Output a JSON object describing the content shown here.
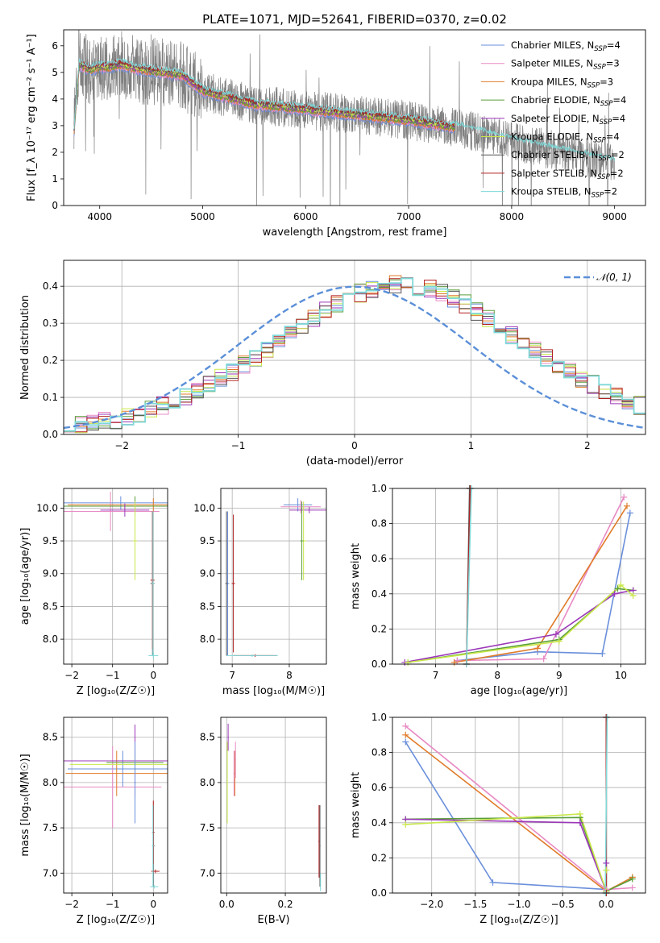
{
  "figure_title": "PLATE=1071, MJD=52641, FIBERID=0370, z=0.02",
  "models": [
    {
      "name": "Chabrier MILES",
      "nssp": "4",
      "color": "#6a8fdb"
    },
    {
      "name": "Salpeter MILES",
      "nssp": "3",
      "color": "#e88ac4"
    },
    {
      "name": "Kroupa MILES",
      "nssp": "3",
      "color": "#e07b2a"
    },
    {
      "name": "Chabrier ELODIE",
      "nssp": "4",
      "color": "#5a9e3a"
    },
    {
      "name": "Salpeter ELODIE",
      "nssp": "4",
      "color": "#9b37b8"
    },
    {
      "name": "Kroupa ELODIE",
      "nssp": "4",
      "color": "#c9e84a"
    },
    {
      "name": "Chabrier STELIB",
      "nssp": "2",
      "color": "#555555"
    },
    {
      "name": "Salpeter STELIB",
      "nssp": "2",
      "color": "#b22222"
    },
    {
      "name": "Kroupa STELIB",
      "nssp": "2",
      "color": "#7fd8d8"
    }
  ],
  "chart_data": [
    {
      "id": "spectrum",
      "type": "line",
      "xlabel": "wavelength [Angstrom, rest frame]",
      "ylabel": "Flux [f_λ 10⁻¹⁷ erg cm⁻² s⁻¹ A⁻¹]",
      "xlim": [
        3650,
        9300
      ],
      "ylim": [
        0,
        6.6
      ],
      "xticks": [
        4000,
        5000,
        6000,
        7000,
        8000,
        9000
      ],
      "yticks": [
        0,
        1,
        2,
        3,
        4,
        5,
        6
      ],
      "data_color": "#808080",
      "data_range": [
        3750,
        9000
      ],
      "model_range": [
        3750,
        7450
      ],
      "continuum": {
        "x": [
          3750,
          3800,
          3900,
          4000,
          4100,
          4200,
          4400,
          4600,
          4800,
          5000,
          5200,
          5500,
          6000,
          6500,
          7000,
          7500,
          8000,
          8500,
          9000
        ],
        "y": [
          2.8,
          5.3,
          5.1,
          5.2,
          5.2,
          5.3,
          5.1,
          5.0,
          4.9,
          4.3,
          4.1,
          3.8,
          3.6,
          3.4,
          3.2,
          2.9,
          2.4,
          2.0,
          1.6
        ]
      },
      "grid": false,
      "legend": "top-right"
    },
    {
      "id": "residuals",
      "type": "step",
      "xlabel": "(data-model)/error",
      "ylabel": "Normed distribution",
      "xlim": [
        -2.5,
        2.5
      ],
      "ylim": [
        0,
        0.47
      ],
      "xticks": [
        -2,
        -1,
        0,
        1,
        2
      ],
      "yticks": [
        0.0,
        0.1,
        0.2,
        0.3,
        0.4
      ],
      "reference_label": "𝒩(0, 1)",
      "bin_edges_start": -2.5,
      "bin_width": 0.1,
      "base_hist": [
        0.018,
        0.025,
        0.03,
        0.035,
        0.04,
        0.047,
        0.055,
        0.066,
        0.078,
        0.09,
        0.104,
        0.12,
        0.135,
        0.152,
        0.17,
        0.188,
        0.208,
        0.228,
        0.25,
        0.27,
        0.292,
        0.312,
        0.332,
        0.352,
        0.368,
        0.382,
        0.392,
        0.4,
        0.405,
        0.405,
        0.4,
        0.392,
        0.382,
        0.368,
        0.352,
        0.332,
        0.312,
        0.292,
        0.27,
        0.25,
        0.228,
        0.208,
        0.188,
        0.17,
        0.152,
        0.135,
        0.12,
        0.104,
        0.09,
        0.078
      ],
      "grid": true,
      "legend": "top-right"
    },
    {
      "id": "age_vs_Z",
      "type": "errorbar",
      "xlabel": "Z [log₁₀(Z/Z☉)]",
      "ylabel": "age  [log₁₀(age/yr)]",
      "xlim": [
        -2.2,
        0.35
      ],
      "ylim": [
        7.62,
        10.3
      ],
      "xticks": [
        -2,
        -1,
        0
      ],
      "yticks": [
        8.0,
        8.5,
        9.0,
        9.5,
        10.0
      ],
      "points": [
        {
          "m": 0,
          "x": -0.8,
          "y": 10.08,
          "xerr": 1.5,
          "yerr": 0.1
        },
        {
          "m": 1,
          "x": -1.05,
          "y": 9.95,
          "xerr": 1.2,
          "yerr": 0.3
        },
        {
          "m": 2,
          "x": 0.0,
          "y": 10.05,
          "xerr": 2.1,
          "yerr": 0.1
        },
        {
          "m": 3,
          "x": -0.45,
          "y": 10.03,
          "xerr": 1.9,
          "yerr": 0.15
        },
        {
          "m": 4,
          "x": -0.7,
          "y": 9.97,
          "xerr": 0.6,
          "yerr": 0.1
        },
        {
          "m": 5,
          "x": -0.45,
          "y": 9.5,
          "xerr": 0.05,
          "yerr": 0.6
        },
        {
          "m": 6,
          "x": -0.02,
          "y": 8.85,
          "xerr": 0.05,
          "yerr": 1.1
        },
        {
          "m": 7,
          "x": -0.02,
          "y": 8.9,
          "xerr": 0.05,
          "yerr": 1.05
        },
        {
          "m": 8,
          "x": 0.0,
          "y": 7.75,
          "xerr": 0.12,
          "yerr": 0.05
        },
        {
          "m": 8,
          "x": -0.01,
          "y": 8.85,
          "xerr": 0.03,
          "yerr": 1.1
        }
      ]
    },
    {
      "id": "age_vs_mass",
      "type": "errorbar",
      "xlabel": "mass [log₁₀(M/M☉)]",
      "ylabel": "",
      "xlim": [
        6.8,
        8.65
      ],
      "ylim": [
        7.62,
        10.3
      ],
      "xticks": [
        7,
        8
      ],
      "yticks": [
        8.0,
        8.5,
        9.0,
        9.5,
        10.0
      ],
      "points": [
        {
          "m": 0,
          "x": 8.15,
          "y": 10.05,
          "xerr": 0.25,
          "yerr": 0.1
        },
        {
          "m": 1,
          "x": 8.2,
          "y": 10.02,
          "xerr": 0.35,
          "yerr": 0.1
        },
        {
          "m": 4,
          "x": 8.35,
          "y": 9.97,
          "xerr": 0.35,
          "yerr": 0.05
        },
        {
          "m": 5,
          "x": 8.25,
          "y": 9.5,
          "xerr": 0.05,
          "yerr": 0.6
        },
        {
          "m": 3,
          "x": 8.22,
          "y": 9.5,
          "xerr": 0.03,
          "yerr": 0.6
        },
        {
          "m": 0,
          "x": 6.92,
          "y": 8.85,
          "xerr": 0.03,
          "yerr": 1.1
        },
        {
          "m": 7,
          "x": 7.02,
          "y": 8.85,
          "xerr": 0.03,
          "yerr": 1.05
        },
        {
          "m": 7,
          "x": 7.4,
          "y": 7.75,
          "xerr": 0.38,
          "yerr": 0.02
        },
        {
          "m": 8,
          "x": 7.35,
          "y": 7.75,
          "xerr": 0.45,
          "yerr": 0.02
        },
        {
          "m": 6,
          "x": 6.9,
          "y": 8.85,
          "xerr": 0.02,
          "yerr": 1.1
        }
      ]
    },
    {
      "id": "weight_vs_age",
      "type": "line",
      "xlabel": "age  [log₁₀(age/yr)]",
      "ylabel": "mass weight",
      "xlim": [
        6.3,
        10.4
      ],
      "ylim": [
        0,
        1.0
      ],
      "xticks": [
        7,
        8,
        9,
        10
      ],
      "yticks": [
        0.0,
        0.2,
        0.4,
        0.6,
        0.8,
        1.0
      ],
      "series": [
        {
          "m": 0,
          "x": [
            7.35,
            8.65,
            9.7,
            10.15
          ],
          "y": [
            0.02,
            0.07,
            0.06,
            0.86
          ]
        },
        {
          "m": 1,
          "x": [
            7.35,
            8.75,
            10.05
          ],
          "y": [
            0.02,
            0.03,
            0.95
          ]
        },
        {
          "m": 2,
          "x": [
            7.3,
            8.65,
            10.1
          ],
          "y": [
            0.01,
            0.09,
            0.9
          ]
        },
        {
          "m": 3,
          "x": [
            6.55,
            9.0,
            9.95,
            10.2
          ],
          "y": [
            0.01,
            0.14,
            0.43,
            0.42
          ]
        },
        {
          "m": 4,
          "x": [
            6.5,
            8.95,
            9.9,
            10.2
          ],
          "y": [
            0.01,
            0.17,
            0.4,
            0.42
          ]
        },
        {
          "m": 5,
          "x": [
            6.55,
            9.0,
            10.0,
            10.2
          ],
          "y": [
            0.01,
            0.13,
            0.45,
            0.39
          ]
        },
        {
          "m": 6,
          "x": [
            7.5,
            7.55
          ],
          "y": [
            0.0,
            1.0
          ]
        },
        {
          "m": 7,
          "x": [
            7.5,
            7.56
          ],
          "y": [
            0.0,
            1.0
          ]
        },
        {
          "m": 8,
          "x": [
            7.5,
            7.58
          ],
          "y": [
            0.0,
            1.0
          ]
        }
      ]
    },
    {
      "id": "mass_vs_Z",
      "type": "errorbar",
      "xlabel": "Z [log₁₀(Z/Z☉)]",
      "ylabel": "mass [log₁₀(M/M☉)]",
      "xlim": [
        -2.2,
        0.35
      ],
      "ylim": [
        6.78,
        8.72
      ],
      "xticks": [
        -2,
        -1,
        0
      ],
      "yticks": [
        7.0,
        7.5,
        8.0,
        8.5
      ],
      "points": [
        {
          "m": 0,
          "x": -0.75,
          "y": 8.15,
          "xerr": 1.35,
          "yerr": 0.2
        },
        {
          "m": 1,
          "x": -1.0,
          "y": 7.95,
          "xerr": 1.2,
          "yerr": 0.45
        },
        {
          "m": 2,
          "x": -0.9,
          "y": 8.1,
          "xerr": 1.25,
          "yerr": 0.25
        },
        {
          "m": 3,
          "x": -0.45,
          "y": 8.22,
          "xerr": 0.7,
          "yerr": 0.1
        },
        {
          "m": 4,
          "x": -0.45,
          "y": 8.24,
          "xerr": 1.8,
          "yerr": 0.4
        },
        {
          "m": 5,
          "x": -0.45,
          "y": 8.2,
          "xerr": 1.6,
          "yerr": 0.1
        },
        {
          "m": 0,
          "x": -0.45,
          "y": 8.0,
          "xerr": 0.02,
          "yerr": 0.45
        },
        {
          "m": 6,
          "x": 0.0,
          "y": 7.3,
          "xerr": 0.03,
          "yerr": 0.45
        },
        {
          "m": 7,
          "x": 0.0,
          "y": 7.45,
          "xerr": 0.03,
          "yerr": 0.35
        },
        {
          "m": 7,
          "x": 0.05,
          "y": 7.02,
          "xerr": 0.1,
          "yerr": 0.02
        },
        {
          "m": 8,
          "x": 0.02,
          "y": 6.85,
          "xerr": 0.1,
          "yerr": 0.02
        },
        {
          "m": 8,
          "x": -0.01,
          "y": 7.3,
          "xerr": 0.02,
          "yerr": 0.45
        }
      ]
    },
    {
      "id": "mass_vs_ebv",
      "type": "errorbar",
      "xlabel": "E(B-V)",
      "ylabel": "",
      "xlim": [
        -0.02,
        0.34
      ],
      "ylim": [
        6.78,
        8.72
      ],
      "xticks": [
        0.0,
        0.2
      ],
      "yticks": [
        7.0,
        7.5,
        8.0,
        8.5
      ],
      "points": [
        {
          "m": 4,
          "x": 0.005,
          "y": 8.5,
          "xerr": 0.002,
          "yerr": 0.15
        },
        {
          "m": 5,
          "x": 0.002,
          "y": 8.0,
          "xerr": 0.002,
          "yerr": 0.45
        },
        {
          "m": 1,
          "x": 0.025,
          "y": 8.1,
          "xerr": 0.002,
          "yerr": 0.25
        },
        {
          "m": 2,
          "x": 0.028,
          "y": 8.1,
          "xerr": 0.002,
          "yerr": 0.25
        },
        {
          "m": 1,
          "x": 0.03,
          "y": 8.25,
          "xerr": 0.002,
          "yerr": 0.2
        },
        {
          "m": 7,
          "x": 0.315,
          "y": 7.35,
          "xerr": 0.002,
          "yerr": 0.4
        },
        {
          "m": 6,
          "x": 0.318,
          "y": 7.3,
          "xerr": 0.002,
          "yerr": 0.45
        },
        {
          "m": 8,
          "x": 0.32,
          "y": 6.9,
          "xerr": 0.002,
          "yerr": 0.1
        }
      ]
    },
    {
      "id": "weight_vs_Z",
      "type": "line",
      "xlabel": "Z [log₁₀(Z/Z☉)]",
      "ylabel": "mass weight",
      "xlim": [
        -2.45,
        0.45
      ],
      "ylim": [
        0,
        1.0
      ],
      "xticks": [
        -2.0,
        -1.5,
        -1.0,
        -0.5,
        0.0
      ],
      "yticks": [
        0.0,
        0.2,
        0.4,
        0.6,
        0.8,
        1.0
      ],
      "series": [
        {
          "m": 0,
          "x": [
            -2.3,
            -1.3,
            0.0
          ],
          "y": [
            0.86,
            0.06,
            0.02
          ]
        },
        {
          "m": 1,
          "x": [
            -2.3,
            0.0,
            0.3
          ],
          "y": [
            0.95,
            0.02,
            0.03
          ]
        },
        {
          "m": 2,
          "x": [
            -2.3,
            0.0,
            0.3
          ],
          "y": [
            0.9,
            0.01,
            0.09
          ]
        },
        {
          "m": 3,
          "x": [
            -2.3,
            -0.3,
            0.0,
            0.3
          ],
          "y": [
            0.42,
            0.43,
            0.01,
            0.08
          ]
        },
        {
          "m": 4,
          "x": [
            -2.3,
            -0.3,
            0.0,
            0.0
          ],
          "y": [
            0.42,
            0.4,
            0.01,
            0.17
          ]
        },
        {
          "m": 5,
          "x": [
            -2.3,
            -0.3,
            0.0,
            0.0
          ],
          "y": [
            0.39,
            0.45,
            0.01,
            0.13
          ]
        },
        {
          "m": 6,
          "x": [
            0.0,
            0.0
          ],
          "y": [
            0.0,
            1.0
          ]
        },
        {
          "m": 7,
          "x": [
            0.0,
            0.0
          ],
          "y": [
            0.0,
            1.0
          ]
        },
        {
          "m": 8,
          "x": [
            -0.01,
            0.01
          ],
          "y": [
            0.0,
            1.0
          ]
        }
      ]
    }
  ]
}
